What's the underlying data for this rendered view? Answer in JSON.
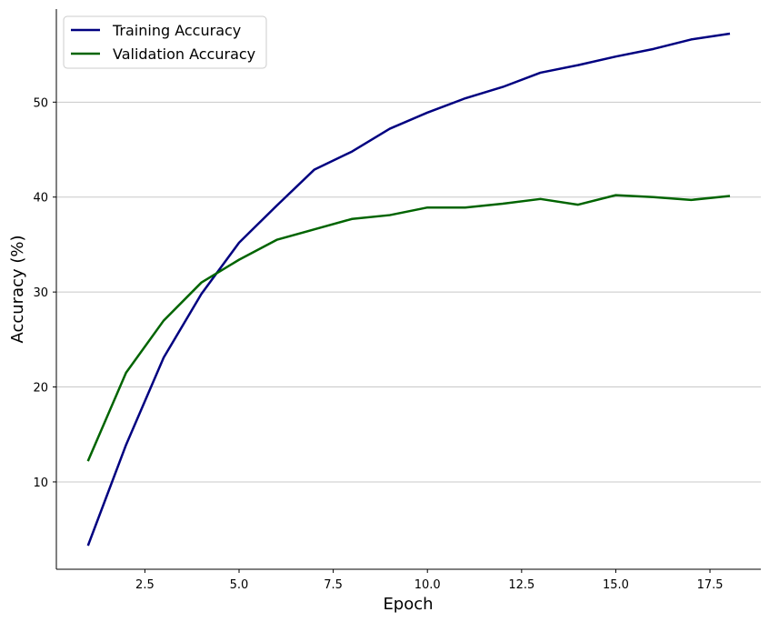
{
  "chart_data": {
    "type": "line",
    "title": "",
    "xlabel": "Epoch",
    "ylabel": "Accuracy (%)",
    "xlim": [
      0.15,
      18.85
    ],
    "ylim": [
      0.8,
      59.8
    ],
    "x_ticks": [
      2.5,
      5.0,
      7.5,
      10.0,
      12.5,
      15.0,
      17.5
    ],
    "x_tick_labels": [
      "2.5",
      "5.0",
      "7.5",
      "10.0",
      "12.5",
      "15.0",
      "17.5"
    ],
    "y_ticks": [
      10,
      20,
      30,
      40,
      50
    ],
    "y_tick_labels": [
      "10",
      "20",
      "30",
      "40",
      "50"
    ],
    "grid": "horizontal",
    "legend_position": "top-left",
    "x": [
      1,
      2,
      3,
      4,
      5,
      6,
      7,
      8,
      9,
      10,
      11,
      12,
      13,
      14,
      15,
      16,
      17,
      18
    ],
    "series": [
      {
        "name": "Training Accuracy",
        "color": "#000080",
        "values": [
          3.4,
          13.9,
          23.1,
          29.8,
          35.2,
          39.1,
          42.9,
          44.8,
          47.2,
          48.9,
          50.4,
          51.6,
          53.1,
          53.9,
          54.8,
          55.6,
          56.6,
          57.2
        ]
      },
      {
        "name": "Validation Accuracy",
        "color": "#006400",
        "values": [
          12.3,
          21.5,
          27.0,
          31.0,
          33.4,
          35.5,
          36.6,
          37.7,
          38.1,
          38.9,
          38.9,
          39.3,
          39.8,
          39.2,
          40.2,
          40.0,
          39.7,
          40.1
        ]
      }
    ]
  }
}
